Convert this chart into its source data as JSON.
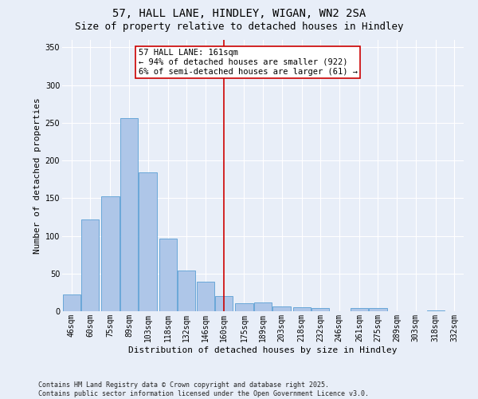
{
  "title": "57, HALL LANE, HINDLEY, WIGAN, WN2 2SA",
  "subtitle": "Size of property relative to detached houses in Hindley",
  "xlabel": "Distribution of detached houses by size in Hindley",
  "ylabel": "Number of detached properties",
  "bar_color": "#aec6e8",
  "bar_edge_color": "#5a9fd4",
  "background_color": "#e8eef8",
  "bins": [
    46,
    60,
    75,
    89,
    103,
    118,
    132,
    146,
    160,
    175,
    189,
    203,
    218,
    232,
    246,
    261,
    275,
    289,
    303,
    318,
    332
  ],
  "bin_labels": [
    "46sqm",
    "60sqm",
    "75sqm",
    "89sqm",
    "103sqm",
    "118sqm",
    "132sqm",
    "146sqm",
    "160sqm",
    "175sqm",
    "189sqm",
    "203sqm",
    "218sqm",
    "232sqm",
    "246sqm",
    "261sqm",
    "275sqm",
    "289sqm",
    "303sqm",
    "318sqm",
    "332sqm"
  ],
  "values": [
    22,
    122,
    153,
    256,
    184,
    96,
    54,
    39,
    20,
    11,
    12,
    6,
    5,
    4,
    0,
    4,
    4,
    0,
    0,
    1,
    0
  ],
  "vline_x": 160,
  "vline_color": "#cc0000",
  "annotation_text": "57 HALL LANE: 161sqm\n← 94% of detached houses are smaller (922)\n6% of semi-detached houses are larger (61) →",
  "annotation_box_color": "#ffffff",
  "annotation_border_color": "#cc0000",
  "ylim": [
    0,
    360
  ],
  "yticks": [
    0,
    50,
    100,
    150,
    200,
    250,
    300,
    350
  ],
  "footer_text": "Contains HM Land Registry data © Crown copyright and database right 2025.\nContains public sector information licensed under the Open Government Licence v3.0.",
  "title_fontsize": 10,
  "subtitle_fontsize": 9,
  "axis_fontsize": 8,
  "tick_fontsize": 7,
  "annotation_fontsize": 7.5,
  "footer_fontsize": 6
}
